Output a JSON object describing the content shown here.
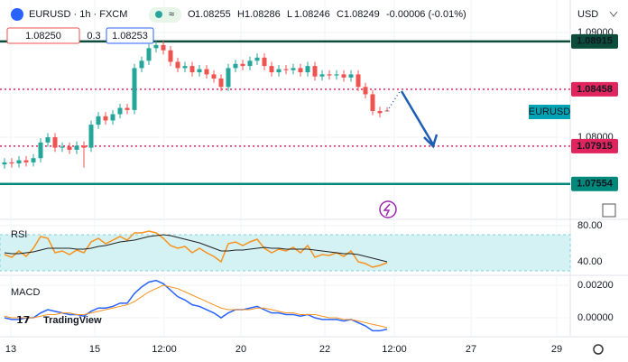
{
  "chart_data": {
    "type": "candlestick",
    "symbol": "EURUSD · 1h · FXCM",
    "ohlc_labels": [
      "O",
      "H",
      "L",
      "C"
    ],
    "change": "-0.00006 (-0.01%)",
    "sell": "1.08250",
    "spread": "0.3",
    "buy": "1.08253",
    "currency": "USD",
    "price_tag": "EURUSD",
    "brand": "TradingView",
    "up_color": "#26a69a",
    "down_color": "#ef5350",
    "open": [
      1.0774,
      1.0776,
      1.0775,
      1.0778,
      1.0776,
      1.078,
      1.0795,
      1.08,
      1.079,
      1.0791,
      1.0788,
      1.0792,
      1.079,
      1.0812,
      1.082,
      1.0816,
      1.0822,
      1.0828,
      1.0826,
      1.0866,
      1.0873,
      1.0885,
      1.0888,
      1.0883,
      1.0872,
      1.0866,
      1.0868,
      1.0862,
      1.0865,
      1.086,
      1.0856,
      1.0848,
      1.0866,
      1.087,
      1.0868,
      1.0873,
      1.0876,
      1.0868,
      1.0862,
      1.0865,
      1.0864,
      1.0866,
      1.0862,
      1.0868,
      1.0858,
      1.086,
      1.0859,
      1.086,
      1.0857,
      1.086,
      1.0848,
      1.0841,
      1.0825,
      1.08255
    ],
    "high": [
      1.078,
      1.078,
      1.0782,
      1.0782,
      1.0784,
      1.0799,
      1.0804,
      1.0804,
      1.0795,
      1.0795,
      1.0796,
      1.0796,
      1.0816,
      1.0824,
      1.0824,
      1.0826,
      1.0832,
      1.0832,
      1.087,
      1.0877,
      1.0889,
      1.0892,
      1.0892,
      1.0887,
      1.0876,
      1.0872,
      1.0872,
      1.0869,
      1.0869,
      1.0864,
      1.086,
      1.087,
      1.0874,
      1.0874,
      1.0877,
      1.088,
      1.088,
      1.0872,
      1.0869,
      1.0869,
      1.087,
      1.087,
      1.0872,
      1.0872,
      1.0864,
      1.0864,
      1.0864,
      1.0864,
      1.0864,
      1.0864,
      1.0852,
      1.0845,
      1.0829,
      1.08286
    ],
    "low": [
      1.077,
      1.0771,
      1.0771,
      1.0772,
      1.0772,
      1.0776,
      1.0791,
      1.0786,
      1.0786,
      1.0784,
      1.0784,
      1.0771,
      1.0786,
      1.0808,
      1.0812,
      1.0812,
      1.0818,
      1.0822,
      1.0822,
      1.0862,
      1.0869,
      1.0881,
      1.0879,
      1.0868,
      1.0862,
      1.0862,
      1.0858,
      1.0858,
      1.0856,
      1.0852,
      1.0844,
      1.0844,
      1.0862,
      1.0864,
      1.0864,
      1.0869,
      1.0864,
      1.0858,
      1.0858,
      1.086,
      1.086,
      1.0858,
      1.0858,
      1.0854,
      1.0854,
      1.0855,
      1.0855,
      1.0853,
      1.0853,
      1.0844,
      1.0837,
      1.0821,
      1.0819,
      1.08246
    ],
    "close": [
      1.0776,
      1.0775,
      1.0778,
      1.0776,
      1.078,
      1.0795,
      1.08,
      1.079,
      1.0791,
      1.0788,
      1.0792,
      1.079,
      1.0812,
      1.082,
      1.0816,
      1.0822,
      1.0828,
      1.0826,
      1.0866,
      1.0873,
      1.0885,
      1.0888,
      1.0883,
      1.0872,
      1.0866,
      1.0868,
      1.0862,
      1.0865,
      1.086,
      1.0856,
      1.0848,
      1.0866,
      1.087,
      1.0868,
      1.0873,
      1.0876,
      1.0868,
      1.0862,
      1.0865,
      1.0864,
      1.0866,
      1.0862,
      1.0868,
      1.0858,
      1.086,
      1.0859,
      1.086,
      1.0857,
      1.086,
      1.0848,
      1.0841,
      1.0825,
      1.0823,
      1.08249
    ],
    "ylim": [
      1.07216,
      1.0931
    ],
    "yticks": [
      {
        "value": 1.08,
        "label": "1.08000"
      },
      {
        "value": 1.09,
        "label": "1.09000"
      }
    ],
    "levels": [
      {
        "value": 1.08915,
        "color": "#0b4d3a",
        "dash": false
      },
      {
        "value": 1.08458,
        "color": "#e0245e",
        "dash": true
      },
      {
        "value": 1.07915,
        "color": "#e0245e",
        "dash": true
      },
      {
        "value": 1.07554,
        "color": "#00897b",
        "dash": false
      }
    ],
    "xticks": [
      "13",
      "15",
      "12:00",
      "20",
      "22",
      "12:00",
      "27",
      "29"
    ],
    "rsi": {
      "label": "RSI",
      "ylim": [
        27,
        85
      ],
      "band": [
        30,
        70
      ],
      "yticks": [
        {
          "value": 40,
          "label": "40.00"
        },
        {
          "value": 80,
          "label": "80.00"
        }
      ],
      "series": [
        {
          "color": "#f7931e",
          "values": [
            48,
            45,
            52,
            46,
            55,
            68,
            66,
            50,
            52,
            48,
            53,
            50,
            62,
            66,
            60,
            64,
            68,
            64,
            72,
            72,
            74,
            72,
            66,
            58,
            55,
            57,
            50,
            55,
            50,
            46,
            40,
            60,
            62,
            58,
            62,
            65,
            55,
            50,
            54,
            52,
            56,
            50,
            58,
            45,
            48,
            47,
            50,
            46,
            52,
            40,
            38,
            34,
            36,
            39
          ]
        },
        {
          "color": "#222222",
          "values": [
            50,
            49,
            49,
            50,
            51,
            53,
            55,
            55,
            55,
            55,
            54,
            54,
            55,
            57,
            58,
            60,
            62,
            63,
            64,
            66,
            68,
            69,
            70,
            69,
            67,
            65,
            63,
            61,
            58,
            55,
            52,
            52,
            53,
            53,
            54,
            55,
            56,
            55,
            55,
            54,
            54,
            54,
            54,
            53,
            52,
            51,
            50,
            49,
            49,
            48,
            46,
            44,
            42,
            40
          ]
        }
      ]
    },
    "macd": {
      "label": "MACD",
      "ylim": [
        -0.00111,
        0.00256
      ],
      "yticks": [
        {
          "value": 0,
          "label": "0.00000"
        },
        {
          "value": 0.002,
          "label": "0.00200"
        }
      ],
      "series": [
        {
          "color": "#2962ff",
          "values": [
            0,
            -0.0001,
            -0.0001,
            0,
            0,
            0.0003,
            0.0005,
            0.0004,
            0.0003,
            0.0002,
            0.0002,
            0.0001,
            0.0004,
            0.0006,
            0.0006,
            0.0007,
            0.0009,
            0.0009,
            0.0015,
            0.0019,
            0.0022,
            0.0023,
            0.0021,
            0.0017,
            0.0013,
            0.0011,
            0.0008,
            0.0007,
            0.0005,
            0.0003,
            0,
            0.0003,
            0.0005,
            0.0005,
            0.0006,
            0.0007,
            0.0005,
            0.0003,
            0.0003,
            0.0002,
            0.0002,
            0.0001,
            0.0002,
            0,
            -0.0001,
            -0.0001,
            -0.0001,
            -0.0002,
            -0.0001,
            -0.0003,
            -0.0005,
            -0.0008,
            -0.0008,
            -0.0007
          ]
        },
        {
          "color": "#f7931e",
          "values": [
            0.0001,
            0,
            0,
            0,
            0,
            0.0001,
            0.0002,
            0.0002,
            0.0003,
            0.0003,
            0.0002,
            0.0002,
            0.0003,
            0.0004,
            0.0005,
            0.0006,
            0.0007,
            0.0008,
            0.001,
            0.0013,
            0.0016,
            0.0018,
            0.002,
            0.0019,
            0.0018,
            0.0016,
            0.0014,
            0.0012,
            0.001,
            0.0008,
            0.0006,
            0.0005,
            0.0005,
            0.0005,
            0.0005,
            0.0006,
            0.0006,
            0.0005,
            0.0004,
            0.0003,
            0.0003,
            0.0002,
            0.0002,
            0.0002,
            0.0001,
            0,
            0,
            -0.0001,
            -0.0001,
            -0.0002,
            -0.0003,
            -0.0004,
            -0.0005,
            -0.0006
          ]
        }
      ]
    }
  }
}
